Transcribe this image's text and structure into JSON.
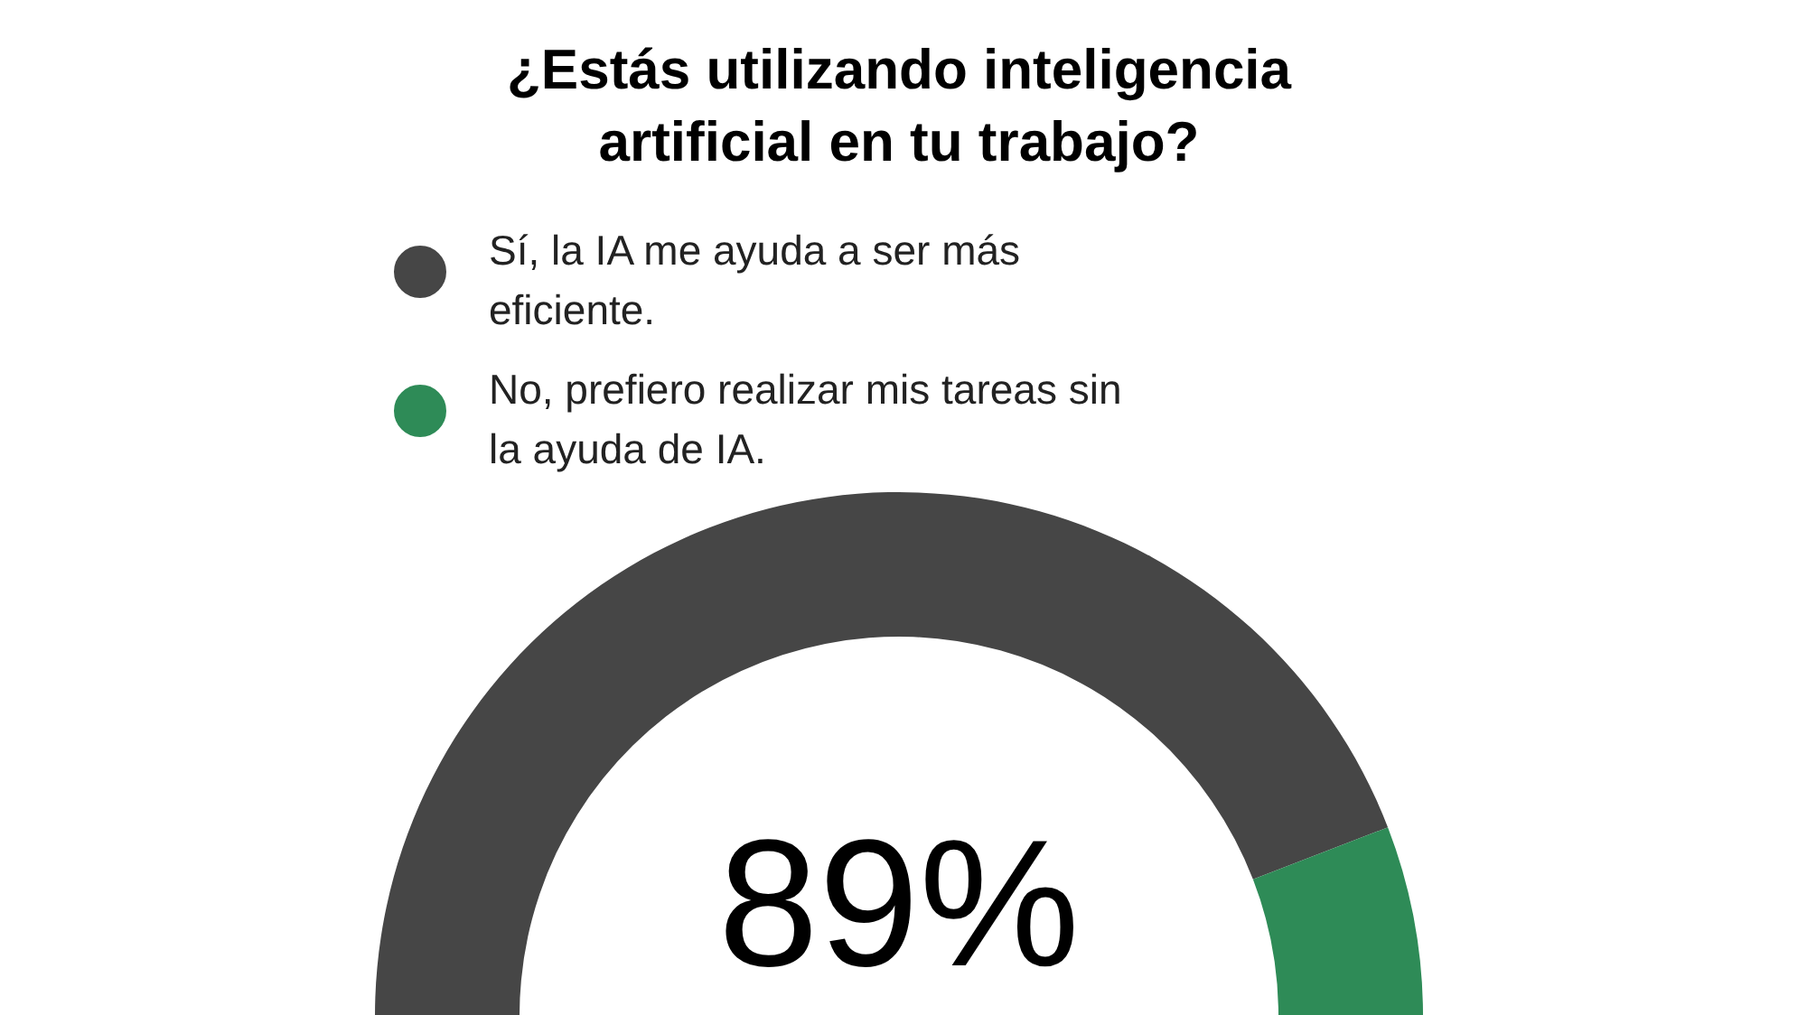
{
  "chart_data": {
    "type": "donut",
    "title": "¿Estás utilizando inteligencia artificial en tu trabajo?",
    "categories": [
      "Sí, la IA me ayuda a ser más eficiente.",
      "No, prefiero realizar mis tareas sin la ayuda de IA."
    ],
    "values": [
      89,
      11
    ],
    "colors": [
      "#464646",
      "#2e8b57"
    ],
    "annotations": [
      "89%"
    ],
    "legend": "top"
  }
}
